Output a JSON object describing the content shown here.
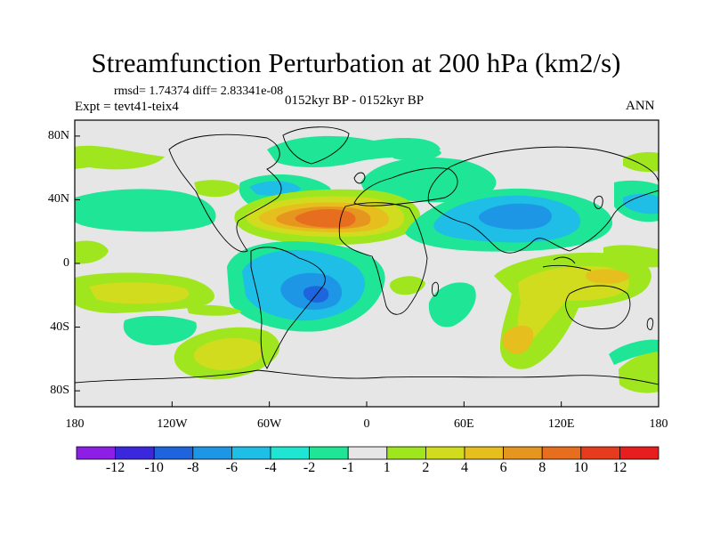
{
  "title": "Streamfunction Perturbation at 200 hPa (km2/s)",
  "stats": {
    "rmsd_text": "rmsd= 1.74374 diff= 2.83341e-08"
  },
  "left_label": "Expt = tevt41-teix4",
  "center_label": "0152kyr BP - 0152kyr BP",
  "right_label": "ANN",
  "y_ticks": [
    {
      "label": "80N",
      "lat": 80
    },
    {
      "label": "40N",
      "lat": 40
    },
    {
      "label": "0",
      "lat": 0
    },
    {
      "label": "40S",
      "lat": -40
    },
    {
      "label": "80S",
      "lat": -80
    }
  ],
  "x_ticks": [
    {
      "label": "180",
      "lon": -180
    },
    {
      "label": "120W",
      "lon": -120
    },
    {
      "label": "60W",
      "lon": -60
    },
    {
      "label": "0",
      "lon": 0
    },
    {
      "label": "60E",
      "lon": 60
    },
    {
      "label": "120E",
      "lon": 120
    },
    {
      "label": "180",
      "lon": 180
    }
  ],
  "colorbar": {
    "colors": [
      "#8c1ee6",
      "#3c28dc",
      "#1e64dc",
      "#1e96e6",
      "#1ebee6",
      "#1ee6d2",
      "#1ee696",
      "#e6e6e6",
      "#a0e61e",
      "#d2dc1e",
      "#e6be1e",
      "#e6961e",
      "#e66e1e",
      "#e63c1e",
      "#e61e1e"
    ],
    "labels": [
      "-12",
      "-10",
      "-8",
      "-6",
      "-4",
      "-2",
      "-1",
      "1",
      "2",
      "4",
      "6",
      "8",
      "10",
      "12"
    ]
  },
  "chart_data": {
    "type": "contour-map",
    "variable": "Streamfunction Perturbation at 200 hPa",
    "units": "km2/s",
    "levels": [
      -12,
      -10,
      -8,
      -6,
      -4,
      -2,
      -1,
      1,
      2,
      4,
      6,
      8,
      10,
      12
    ],
    "lon_range": [
      -180,
      180
    ],
    "lat_range": [
      -90,
      90
    ],
    "features": [
      {
        "sign": "positive",
        "lon": -15,
        "lat": 28,
        "max": 8
      },
      {
        "sign": "negative",
        "lon": -30,
        "lat": -15,
        "min": -6
      },
      {
        "sign": "negative",
        "lon": 90,
        "lat": 33,
        "min": -6
      },
      {
        "sign": "negative",
        "lon": -75,
        "lat": 42,
        "min": -2
      },
      {
        "sign": "negative",
        "lon": -15,
        "lat": 68,
        "min": -1
      },
      {
        "sign": "negative",
        "lon": 20,
        "lat": 68,
        "min": -2
      },
      {
        "sign": "positive",
        "lon": 110,
        "lat": -45,
        "max": 4
      },
      {
        "sign": "positive",
        "lon": 165,
        "lat": -15,
        "max": 4
      },
      {
        "sign": "positive",
        "lon": -150,
        "lat": -15,
        "max": 4
      },
      {
        "sign": "negative",
        "lon": -110,
        "lat": -60,
        "min": -2
      },
      {
        "sign": "positive",
        "lon": -105,
        "lat": -55,
        "max": 2
      }
    ]
  }
}
